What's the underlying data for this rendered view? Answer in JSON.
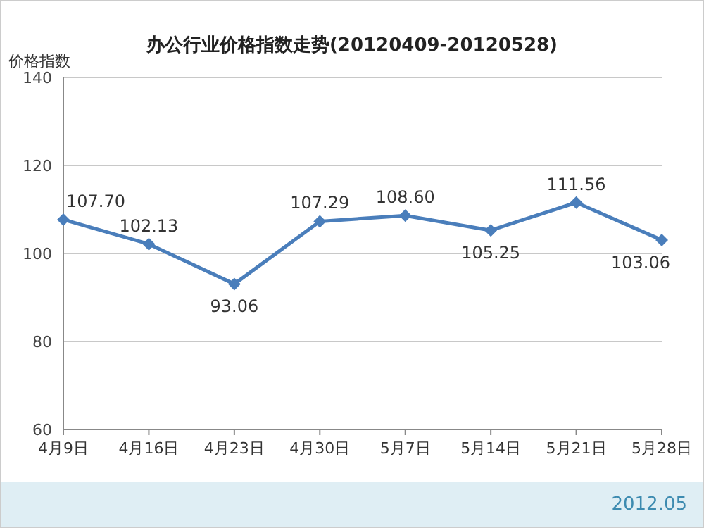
{
  "chart_data": {
    "type": "line",
    "title": "办公行业价格指数走势(20120409-20120528)",
    "ylabel": "价格指数",
    "categories": [
      "4月9日",
      "4月16日",
      "4月23日",
      "4月30日",
      "5月7日",
      "5月14日",
      "5月21日",
      "5月28日"
    ],
    "series": [
      {
        "color": "#4a7ebb",
        "values": [
          107.7,
          102.13,
          93.06,
          107.29,
          108.6,
          105.25,
          111.56,
          103.06
        ]
      }
    ],
    "value_labels": [
      "107.70",
      "102.13",
      "93.06",
      "107.29",
      "108.60",
      "105.25",
      "111.56",
      "103.06"
    ],
    "ylim": [
      60,
      140
    ],
    "yticks": [
      60,
      80,
      100,
      120,
      140
    ],
    "grid": "y",
    "marker": "diamond",
    "line_style": "solid",
    "annotations": [
      "2012.05"
    ]
  }
}
